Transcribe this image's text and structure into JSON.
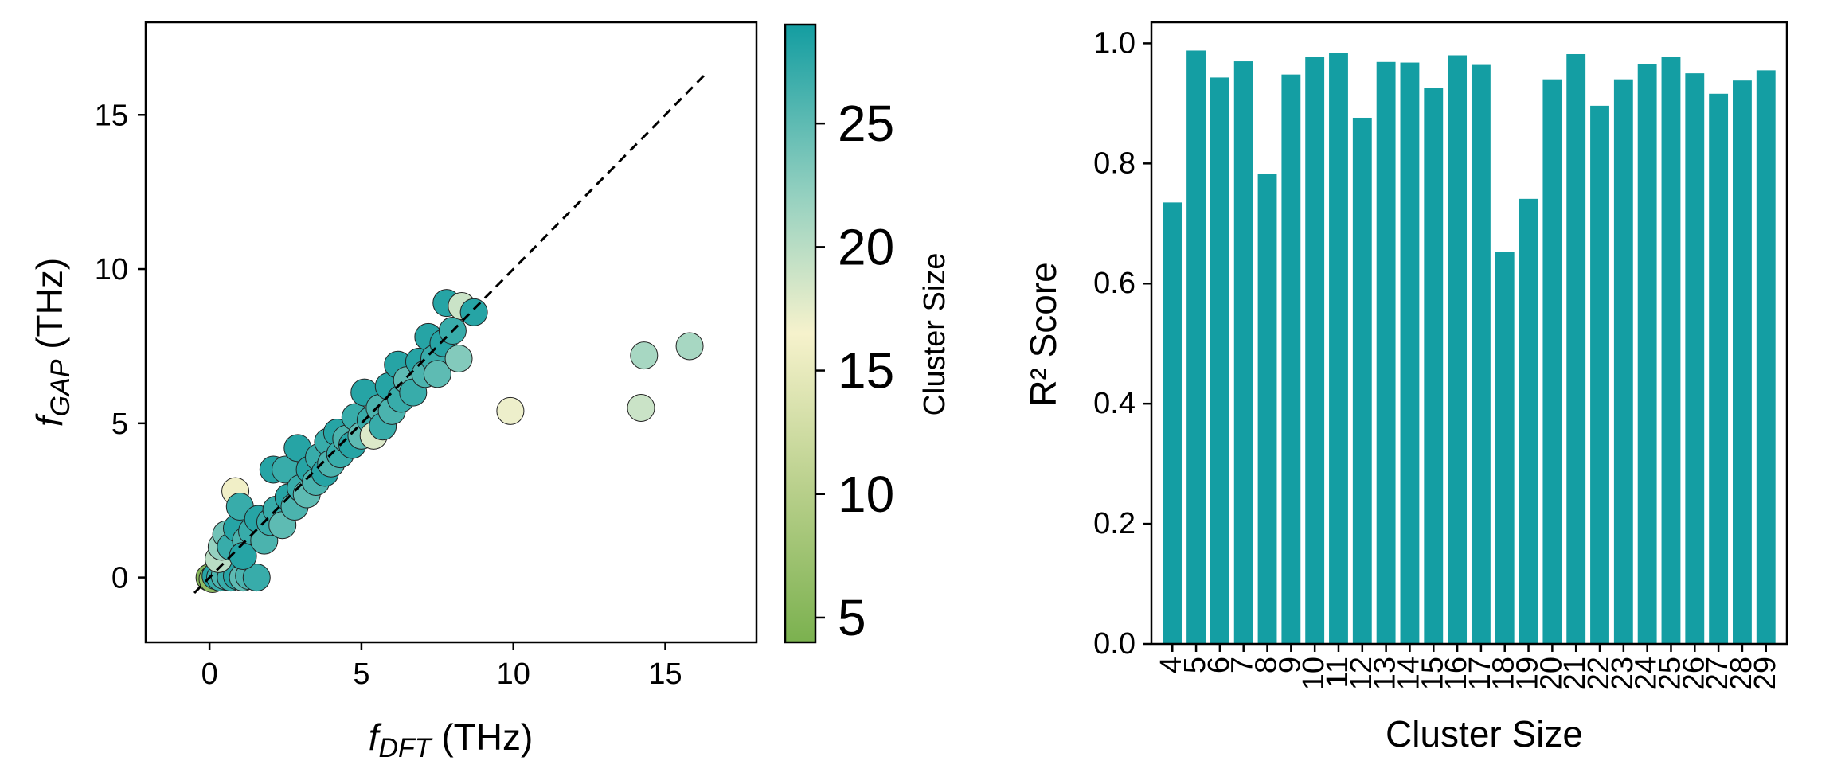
{
  "colors": {
    "bar": "#149ea3",
    "scatter_edge": "#222222",
    "diagonal": "#000000",
    "colormap": [
      "#7bb14f",
      "#b9d08c",
      "#f6f2cc",
      "#96d1c0",
      "#139da1"
    ]
  },
  "chart_data": [
    {
      "type": "scatter",
      "title": "",
      "xlabel": {
        "symbol": "f",
        "sub": "DFT",
        "unit": " (THz)"
      },
      "ylabel": {
        "symbol": "f",
        "sub": "GAP",
        "unit": " (THz)"
      },
      "xlim": [
        -2.1,
        18
      ],
      "ylim": [
        -2.1,
        18
      ],
      "xticks": [
        "0",
        "5",
        "10",
        "15"
      ],
      "yticks": [
        "0",
        "5",
        "10",
        "15"
      ],
      "diagonal": [
        [
          -0.5,
          -0.5
        ],
        [
          16.3,
          16.3
        ]
      ],
      "colorbar": {
        "label": "Cluster Size",
        "range": [
          4,
          29
        ],
        "ticks": [
          "5",
          "10",
          "15",
          "20",
          "25"
        ]
      },
      "points": [
        {
          "x": 0.0,
          "y": 0.0,
          "c": 5
        },
        {
          "x": 0.1,
          "y": -0.05,
          "c": 6
        },
        {
          "x": 0.2,
          "y": 0.05,
          "c": 28
        },
        {
          "x": 0.35,
          "y": 0.0,
          "c": 27
        },
        {
          "x": 0.5,
          "y": 0.05,
          "c": 26
        },
        {
          "x": 0.7,
          "y": 0.0,
          "c": 27
        },
        {
          "x": 0.9,
          "y": 0.05,
          "c": 28
        },
        {
          "x": 1.1,
          "y": 0.0,
          "c": 25
        },
        {
          "x": 1.3,
          "y": 0.05,
          "c": 26
        },
        {
          "x": 1.55,
          "y": 0.0,
          "c": 27
        },
        {
          "x": 0.3,
          "y": 0.6,
          "c": 20
        },
        {
          "x": 0.4,
          "y": 1.0,
          "c": 22
        },
        {
          "x": 0.55,
          "y": 1.4,
          "c": 24
        },
        {
          "x": 0.85,
          "y": 2.8,
          "c": 16
        },
        {
          "x": 0.7,
          "y": 1.0,
          "c": 27
        },
        {
          "x": 0.9,
          "y": 1.6,
          "c": 28
        },
        {
          "x": 1.0,
          "y": 2.3,
          "c": 27
        },
        {
          "x": 1.2,
          "y": 1.2,
          "c": 26
        },
        {
          "x": 1.1,
          "y": 0.7,
          "c": 28
        },
        {
          "x": 1.4,
          "y": 1.5,
          "c": 27
        },
        {
          "x": 1.6,
          "y": 1.9,
          "c": 28
        },
        {
          "x": 1.8,
          "y": 1.2,
          "c": 26
        },
        {
          "x": 2.0,
          "y": 1.8,
          "c": 27
        },
        {
          "x": 2.1,
          "y": 3.5,
          "c": 28
        },
        {
          "x": 2.2,
          "y": 2.2,
          "c": 27
        },
        {
          "x": 2.4,
          "y": 1.7,
          "c": 25
        },
        {
          "x": 2.5,
          "y": 3.5,
          "c": 27
        },
        {
          "x": 2.6,
          "y": 2.6,
          "c": 28
        },
        {
          "x": 2.8,
          "y": 2.3,
          "c": 26
        },
        {
          "x": 2.9,
          "y": 4.2,
          "c": 28
        },
        {
          "x": 3.0,
          "y": 2.9,
          "c": 27
        },
        {
          "x": 3.2,
          "y": 2.7,
          "c": 25
        },
        {
          "x": 3.3,
          "y": 3.5,
          "c": 28
        },
        {
          "x": 3.5,
          "y": 3.1,
          "c": 26
        },
        {
          "x": 3.6,
          "y": 3.9,
          "c": 27
        },
        {
          "x": 3.8,
          "y": 3.4,
          "c": 28
        },
        {
          "x": 3.9,
          "y": 4.4,
          "c": 27
        },
        {
          "x": 4.0,
          "y": 3.7,
          "c": 26
        },
        {
          "x": 4.2,
          "y": 4.7,
          "c": 28
        },
        {
          "x": 4.3,
          "y": 4.0,
          "c": 27
        },
        {
          "x": 4.5,
          "y": 4.5,
          "c": 26
        },
        {
          "x": 4.7,
          "y": 4.3,
          "c": 28
        },
        {
          "x": 4.8,
          "y": 5.2,
          "c": 27
        },
        {
          "x": 5.0,
          "y": 4.6,
          "c": 25
        },
        {
          "x": 5.1,
          "y": 6.0,
          "c": 28
        },
        {
          "x": 5.3,
          "y": 5.1,
          "c": 27
        },
        {
          "x": 5.4,
          "y": 4.6,
          "c": 18
        },
        {
          "x": 5.6,
          "y": 5.5,
          "c": 26
        },
        {
          "x": 5.7,
          "y": 4.9,
          "c": 27
        },
        {
          "x": 5.9,
          "y": 6.2,
          "c": 28
        },
        {
          "x": 6.0,
          "y": 5.4,
          "c": 26
        },
        {
          "x": 6.2,
          "y": 6.9,
          "c": 28
        },
        {
          "x": 6.3,
          "y": 5.8,
          "c": 27
        },
        {
          "x": 6.5,
          "y": 6.4,
          "c": 25
        },
        {
          "x": 6.7,
          "y": 6.0,
          "c": 27
        },
        {
          "x": 6.9,
          "y": 7.0,
          "c": 28
        },
        {
          "x": 7.1,
          "y": 6.6,
          "c": 26
        },
        {
          "x": 7.2,
          "y": 7.8,
          "c": 28
        },
        {
          "x": 7.4,
          "y": 7.1,
          "c": 27
        },
        {
          "x": 7.5,
          "y": 6.6,
          "c": 25
        },
        {
          "x": 7.7,
          "y": 7.6,
          "c": 28
        },
        {
          "x": 7.8,
          "y": 8.9,
          "c": 28
        },
        {
          "x": 8.0,
          "y": 8.0,
          "c": 27
        },
        {
          "x": 8.2,
          "y": 7.1,
          "c": 23
        },
        {
          "x": 8.3,
          "y": 8.8,
          "c": 19
        },
        {
          "x": 8.7,
          "y": 8.6,
          "c": 28
        },
        {
          "x": 9.9,
          "y": 5.4,
          "c": 17
        },
        {
          "x": 14.2,
          "y": 5.5,
          "c": 19
        },
        {
          "x": 14.3,
          "y": 7.2,
          "c": 21
        },
        {
          "x": 15.8,
          "y": 7.5,
          "c": 21
        }
      ]
    },
    {
      "type": "bar",
      "title": "",
      "xlabel": "Cluster Size",
      "ylabel": "R² Score",
      "ylim": [
        0,
        1.035
      ],
      "yticks": [
        "0.0",
        "0.2",
        "0.4",
        "0.6",
        "0.8",
        "1.0"
      ],
      "categories": [
        "4",
        "5",
        "6",
        "7",
        "8",
        "9",
        "10",
        "11",
        "12",
        "13",
        "14",
        "15",
        "16",
        "17",
        "18",
        "19",
        "20",
        "21",
        "22",
        "23",
        "24",
        "25",
        "26",
        "27",
        "28",
        "29"
      ],
      "values": [
        0.735,
        0.988,
        0.943,
        0.97,
        0.783,
        0.948,
        0.978,
        0.984,
        0.876,
        0.969,
        0.968,
        0.926,
        0.98,
        0.964,
        0.653,
        0.741,
        0.94,
        0.982,
        0.896,
        0.94,
        0.965,
        0.978,
        0.95,
        0.916,
        0.938,
        0.955
      ]
    }
  ]
}
